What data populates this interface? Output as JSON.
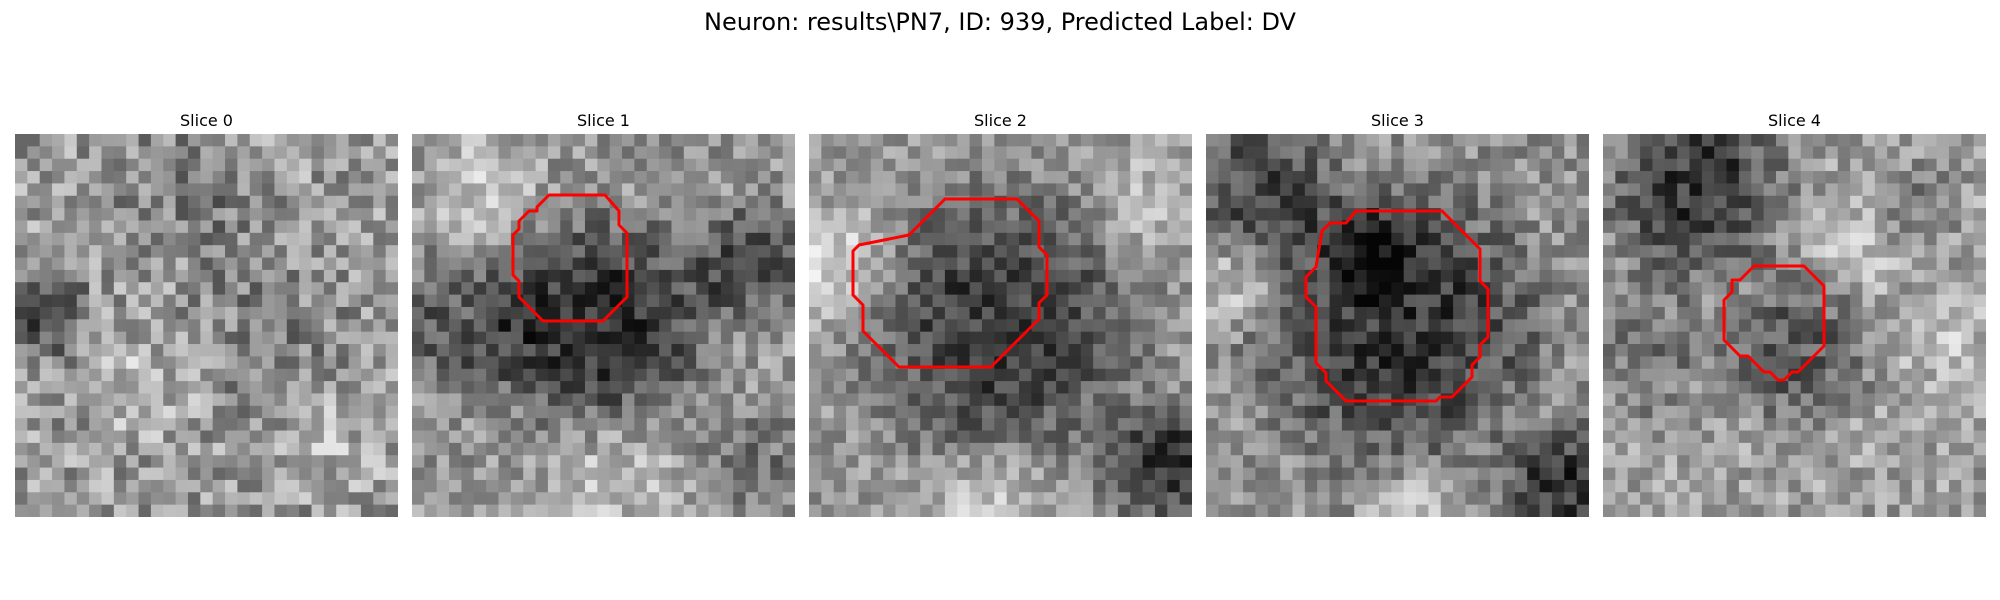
{
  "figure": {
    "title": "Neuron: results\\PN7, ID: 939, Predicted Label: DV",
    "outline_color": "#ff0000",
    "panels": [
      {
        "title": "Slice 0"
      },
      {
        "title": "Slice 1"
      },
      {
        "title": "Slice 2"
      },
      {
        "title": "Slice 3"
      },
      {
        "title": "Slice 4"
      }
    ]
  }
}
